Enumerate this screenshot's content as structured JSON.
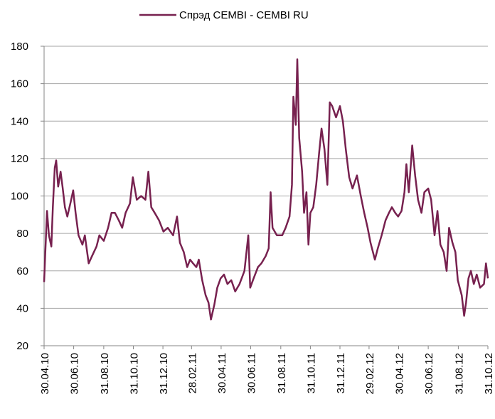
{
  "chart_data": {
    "type": "line",
    "series": [
      {
        "name": "Спрэд CEMBI - CEMBI RU",
        "color": "#77214f",
        "values": [
          54,
          92,
          79,
          73,
          94,
          115,
          119,
          105,
          113,
          105,
          94,
          89,
          97,
          103,
          91,
          79,
          74,
          79,
          64,
          68,
          73,
          79,
          76,
          83,
          91,
          91,
          87,
          83,
          91,
          96,
          110,
          98,
          100,
          98,
          113,
          94,
          91,
          87,
          81,
          83,
          79,
          89,
          75,
          70,
          62,
          66,
          64,
          62,
          66,
          55,
          47,
          43,
          34,
          42,
          51,
          56,
          58,
          53,
          55,
          49,
          53,
          60,
          79,
          51,
          56,
          62,
          64,
          68,
          72,
          102,
          83,
          79,
          79,
          83,
          89,
          106,
          153,
          138,
          173,
          131,
          113,
          91,
          102,
          74,
          91,
          94,
          106,
          123,
          136,
          125,
          106,
          150,
          148,
          142,
          148,
          140,
          125,
          110,
          104,
          111,
          100,
          91,
          83,
          75,
          66,
          72,
          79,
          87,
          91,
          94,
          91,
          89,
          92,
          102,
          117,
          102,
          127,
          111,
          98,
          91,
          102,
          104,
          98,
          79,
          92,
          74,
          70,
          60,
          83,
          75,
          70,
          55,
          51,
          47,
          36,
          43,
          56,
          60,
          53,
          58,
          51,
          53,
          64,
          56
        ]
      }
    ],
    "x": [
      "30.04.10",
      "06.05.10",
      "10.05.10",
      "15.05.10",
      "18.05.10",
      "22.05.10",
      "25.05.10",
      "29.05.10",
      "03.06.10",
      "07.06.10",
      "12.06.10",
      "17.06.10",
      "24.06.10",
      "29.06.10",
      "04.07.10",
      "10.07.10",
      "18.07.10",
      "23.07.10",
      "31.07.10",
      "07.08.10",
      "16.08.10",
      "22.08.10",
      "31.08.10",
      "09.09.10",
      "16.09.10",
      "23.09.10",
      "01.10.10",
      "08.10.10",
      "15.10.10",
      "24.10.10",
      "30.10.10",
      "07.11.10",
      "16.11.10",
      "25.11.10",
      "01.12.10",
      "07.12.10",
      "14.12.10",
      "23.12.10",
      "01.01.11",
      "10.01.11",
      "21.01.11",
      "29.01.11",
      "04.02.11",
      "12.02.11",
      "19.02.11",
      "25.02.11",
      "03.03.11",
      "10.03.11",
      "15.03.11",
      "22.03.11",
      "29.03.11",
      "04.04.11",
      "09.04.11",
      "16.04.11",
      "22.04.11",
      "29.04.11",
      "06.05.11",
      "13.05.11",
      "21.05.11",
      "29.05.11",
      "07.06.11",
      "17.06.11",
      "25.06.11",
      "29.06.11",
      "06.07.11",
      "15.07.11",
      "22.07.11",
      "31.07.11",
      "06.08.11",
      "10.08.11",
      "14.08.11",
      "23.08.11",
      "03.09.11",
      "10.09.11",
      "18.09.11",
      "23.09.11",
      "26.09.11",
      "01.10.11",
      "04.10.11",
      "08.10.11",
      "14.10.11",
      "18.10.11",
      "23.10.11",
      "27.10.11",
      "31.10.11",
      "06.11.11",
      "12.11.11",
      "18.11.11",
      "23.11.11",
      "29.11.11",
      "05.12.11",
      "10.12.11",
      "15.12.11",
      "23.12.11",
      "31.12.11",
      "06.01.12",
      "12.01.12",
      "19.01.12",
      "26.01.12",
      "04.02.12",
      "12.02.12",
      "19.02.12",
      "26.02.12",
      "03.03.12",
      "12.03.12",
      "18.03.12",
      "26.03.12",
      "03.04.12",
      "10.04.12",
      "16.04.12",
      "23.04.12",
      "29.04.12",
      "06.05.12",
      "12.05.12",
      "16.05.12",
      "21.05.12",
      "28.05.12",
      "03.06.12",
      "09.06.12",
      "16.06.12",
      "22.06.12",
      "30.06.12",
      "06.07.12",
      "13.07.12",
      "19.07.12",
      "25.07.12",
      "01.08.12",
      "07.08.12",
      "12.08.12",
      "19.08.12",
      "25.08.12",
      "30.08.12",
      "03.09.12",
      "07.09.12",
      "12.09.12",
      "16.09.12",
      "21.09.12",
      "26.09.12",
      "02.10.12",
      "08.10.12",
      "15.10.12",
      "23.10.12",
      "27.10.12",
      "31.10.12"
    ],
    "xlim": [
      "30.04.10",
      "31.10.12"
    ],
    "xticks": [
      "30.04.10",
      "30.06.10",
      "31.08.10",
      "31.10.10",
      "31.12.10",
      "28.02.11",
      "30.04.11",
      "30.06.11",
      "31.08.11",
      "31.10.11",
      "31.12.11",
      "29.02.12",
      "30.04.12",
      "30.06.12",
      "31.08.12",
      "31.10.12"
    ],
    "ylim": [
      20,
      180
    ],
    "yticks": [
      20,
      40,
      60,
      80,
      100,
      120,
      140,
      160,
      180
    ],
    "grid": true,
    "legend": "top"
  }
}
